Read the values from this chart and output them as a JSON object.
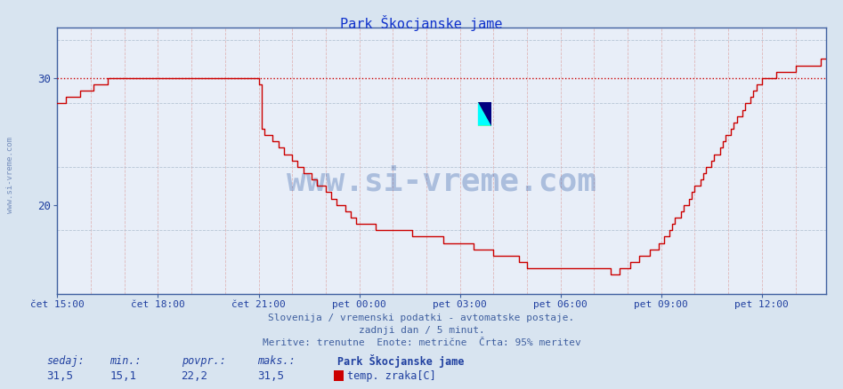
{
  "title": "Park Škocjanske jame",
  "bg_color": "#d8e4f0",
  "plot_bg_color": "#e8eef8",
  "line_color": "#cc0000",
  "dashed_line_color": "#cc0000",
  "dashed_line_y": 30,
  "yticks": [
    20,
    30
  ],
  "ylim_min": 13,
  "ylim_max": 34,
  "n_points": 276,
  "x_tick_labels": [
    "čet 15:00",
    "čet 18:00",
    "čet 21:00",
    "pet 00:00",
    "pet 03:00",
    "pet 06:00",
    "pet 09:00",
    "pet 12:00"
  ],
  "x_tick_positions": [
    0,
    36,
    72,
    108,
    144,
    180,
    216,
    252
  ],
  "watermark_text": "www.si-vreme.com",
  "watermark_color": "#2050a0",
  "watermark_alpha": 0.3,
  "footer_line1": "Slovenija / vremenski podatki - avtomatske postaje.",
  "footer_line2": "zadnji dan / 5 minut.",
  "footer_line3": "Meritve: trenutne  Enote: metrične  Črta: 95% meritev",
  "footer_color": "#4060a0",
  "legend_station": "Park Škocjanske jame",
  "legend_label": "temp. zraka[C]",
  "stat_labels": [
    "sedaj:",
    "min.:",
    "povpr.:",
    "maks.:"
  ],
  "stat_values": [
    "31,5",
    "15,1",
    "22,2",
    "31,5"
  ],
  "stat_color": "#2040a0",
  "sidebar_text": "www.si-vreme.com",
  "sidebar_color": "#4060a0",
  "grid_v_color": "#ddaaaa",
  "grid_h_color": "#aabbcc",
  "spine_color": "#4060a0",
  "logo_yellow": "#ffff00",
  "logo_cyan": "#00ffff",
  "logo_navy": "#000080"
}
